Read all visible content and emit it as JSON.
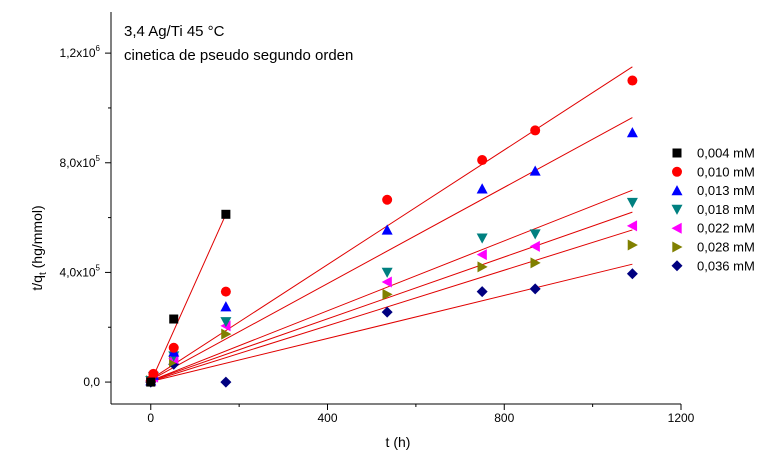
{
  "chart_data": {
    "type": "scatter",
    "annotations": [
      "3,4 Ag/Ti 45 °C",
      "cinetica de pseudo segundo orden"
    ],
    "xlabel": "t (h)",
    "ylabel_main": "t/q",
    "ylabel_sub": "t",
    "ylabel_rest": " (hg/mmol)",
    "xlim": [
      -90,
      1200
    ],
    "ylim": [
      -80000,
      1350000
    ],
    "x_ticks": [
      0,
      400,
      800,
      1200
    ],
    "x_tick_labels": [
      "0",
      "400",
      "800",
      "1200"
    ],
    "y_ticks": [
      0,
      400000,
      800000,
      1200000
    ],
    "y_tick_labels": [
      {
        "base": "0,0",
        "exp": ""
      },
      {
        "base": "4,0x10",
        "exp": "5"
      },
      {
        "base": "8,0x10",
        "exp": "5"
      },
      {
        "base": "1,2x10",
        "exp": "6"
      }
    ],
    "legend_position": "right",
    "fit_line_color": "#e00000",
    "series": [
      {
        "name": "0,004 mM",
        "marker": "square",
        "color": "#000000",
        "x": [
          0,
          52,
          170
        ],
        "y": [
          0,
          230000,
          612000
        ],
        "fit": {
          "x": [
            0,
            170
          ],
          "y": [
            0,
            612000
          ]
        }
      },
      {
        "name": "0,010 mM",
        "marker": "circle",
        "color": "#ff0000",
        "x": [
          0,
          6,
          52,
          170,
          535,
          750,
          870,
          1090
        ],
        "y": [
          5000,
          30000,
          125000,
          330000,
          665000,
          810000,
          918000,
          1100000
        ],
        "fit": {
          "x": [
            0,
            1090
          ],
          "y": [
            10000,
            1150000
          ]
        }
      },
      {
        "name": "0,013 mM",
        "marker": "triangle-up",
        "color": "#0000ff",
        "x": [
          0,
          6,
          52,
          170,
          535,
          750,
          870,
          1090
        ],
        "y": [
          5000,
          25000,
          110000,
          275000,
          555000,
          705000,
          770000,
          910000
        ],
        "fit": {
          "x": [
            0,
            1090
          ],
          "y": [
            8000,
            965000
          ]
        }
      },
      {
        "name": "0,018 mM",
        "marker": "triangle-down",
        "color": "#008080",
        "x": [
          0,
          6,
          52,
          170,
          535,
          750,
          870,
          1090
        ],
        "y": [
          5000,
          20000,
          95000,
          220000,
          400000,
          525000,
          540000,
          655000
        ],
        "fit": {
          "x": [
            0,
            1090
          ],
          "y": [
            5000,
            700000
          ]
        }
      },
      {
        "name": "0,022 mM",
        "marker": "triangle-left",
        "color": "#ff00ff",
        "x": [
          0,
          6,
          52,
          170,
          535,
          750,
          870,
          1090
        ],
        "y": [
          5000,
          18000,
          85000,
          205000,
          365000,
          465000,
          495000,
          570000
        ],
        "fit": {
          "x": [
            0,
            1090
          ],
          "y": [
            5000,
            620000
          ]
        }
      },
      {
        "name": "0,028 mM",
        "marker": "triangle-right",
        "color": "#808000",
        "x": [
          0,
          6,
          52,
          170,
          535,
          750,
          870,
          1090
        ],
        "y": [
          5000,
          15000,
          75000,
          175000,
          320000,
          420000,
          435000,
          500000
        ],
        "fit": {
          "x": [
            0,
            1090
          ],
          "y": [
            3000,
            555000
          ]
        }
      },
      {
        "name": "0,036 mM",
        "marker": "diamond",
        "color": "#000080",
        "x": [
          0,
          6,
          52,
          170,
          535,
          750,
          870,
          1090
        ],
        "y": [
          0,
          12000,
          65000,
          0,
          255000,
          330000,
          340000,
          395000
        ],
        "fit": {
          "x": [
            0,
            1090
          ],
          "y": [
            2000,
            430000
          ]
        }
      }
    ]
  }
}
